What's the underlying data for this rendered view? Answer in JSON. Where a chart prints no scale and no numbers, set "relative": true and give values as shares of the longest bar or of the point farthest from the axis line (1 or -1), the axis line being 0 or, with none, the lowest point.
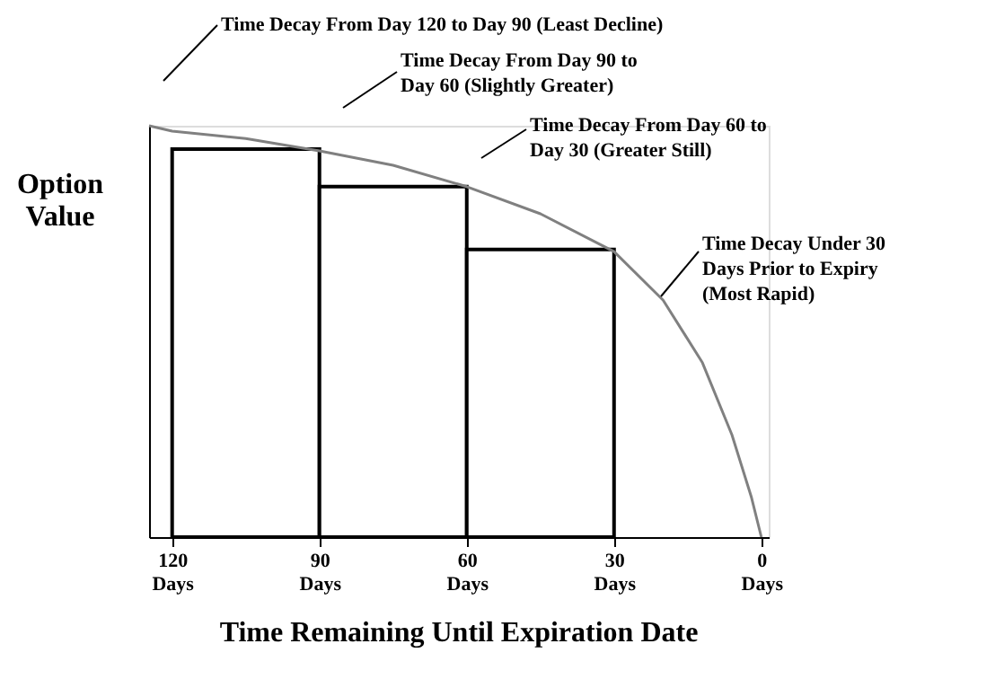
{
  "chart_data": {
    "type": "line",
    "relative": true,
    "xlabel": "Time Remaining Until Expiration Date",
    "ylabel": "Option\nValue",
    "xlim": [
      124.7,
      -1.5
    ],
    "xticks": [
      {
        "value": 120,
        "label": "120 Days"
      },
      {
        "value": 90,
        "label": "90 Days"
      },
      {
        "value": 60,
        "label": "60 Days"
      },
      {
        "value": 30,
        "label": "30 Days"
      },
      {
        "value": 0,
        "label": "0 Days"
      }
    ],
    "series": [
      {
        "type": "bar",
        "color": "#000000",
        "x": [
          105,
          75,
          45
        ],
        "values": [
          0.943,
          0.852,
          0.699
        ]
      },
      {
        "color": "#808080",
        "x": [
          124.7,
          120,
          105,
          90,
          75,
          60,
          45,
          30,
          20,
          12,
          6,
          2,
          0
        ],
        "values": [
          1.0,
          0.987,
          0.969,
          0.939,
          0.904,
          0.852,
          0.786,
          0.694,
          0.576,
          0.424,
          0.249,
          0.096,
          0.0
        ]
      }
    ],
    "annotations": [
      "Time Decay From Day 120 to Day 90 (Least Decline)",
      "Time Decay From Day 90 to\nDay 60 (Slightly Greater)",
      "Time Decay From Day 60 to\nDay 30 (Greater Still)",
      "Time Decay Under 30\nDays Prior to Expiry\n(Most Rapid)"
    ],
    "grid": false,
    "legend": false,
    "marker": "none",
    "line_style": "solid"
  }
}
